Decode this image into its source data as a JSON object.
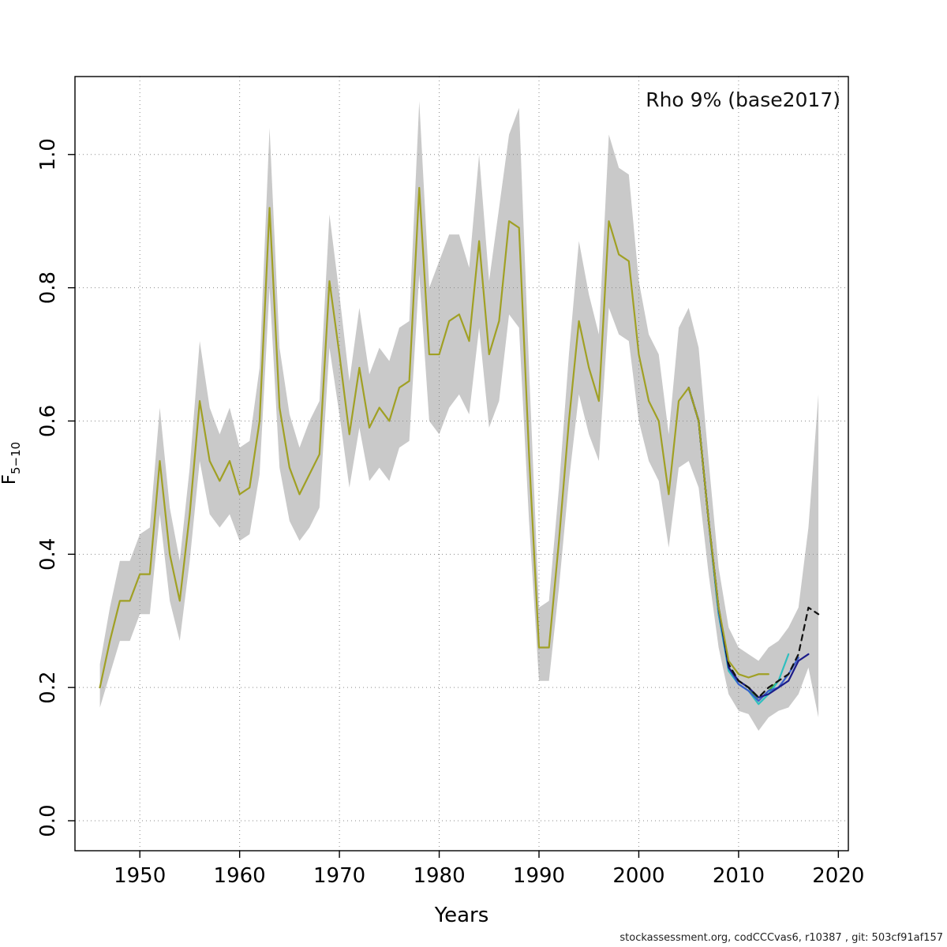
{
  "page": {
    "footer": "stockassessment.org, codCCCvas6, r10387 , git: 503cf91af157"
  },
  "chart_data": {
    "type": "line",
    "title": "Rho 9% (base2017)",
    "xlabel": "Years",
    "ylabel": "F5-10",
    "ylabel_base": "F",
    "ylabel_sub": "5−10",
    "xlim": [
      1943.5,
      2021
    ],
    "ylim": [
      -0.045,
      1.117
    ],
    "xticks": [
      1950,
      1960,
      1970,
      1980,
      1990,
      2000,
      2010,
      2020
    ],
    "xtick_labels": [
      "1950",
      "1960",
      "1970",
      "1980",
      "1990",
      "2000",
      "2010",
      "2020"
    ],
    "yticks": [
      0.0,
      0.2,
      0.4,
      0.6,
      0.8,
      1.0
    ],
    "ytick_labels": [
      "0.0",
      "0.2",
      "0.4",
      "0.6",
      "0.8",
      "1.0"
    ],
    "grid": "dotted",
    "legend": "none",
    "band": {
      "color": "#c9c9c9",
      "years": [
        1946,
        1947,
        1948,
        1949,
        1950,
        1951,
        1952,
        1953,
        1954,
        1955,
        1956,
        1957,
        1958,
        1959,
        1960,
        1961,
        1962,
        1963,
        1964,
        1965,
        1966,
        1967,
        1968,
        1969,
        1970,
        1971,
        1972,
        1973,
        1974,
        1975,
        1976,
        1977,
        1978,
        1979,
        1980,
        1981,
        1982,
        1983,
        1984,
        1985,
        1986,
        1987,
        1988,
        1989,
        1990,
        1991,
        1992,
        1993,
        1994,
        1995,
        1996,
        1997,
        1998,
        1999,
        2000,
        2001,
        2002,
        2003,
        2004,
        2005,
        2006,
        2007,
        2008,
        2009,
        2010,
        2011,
        2012,
        2013,
        2014,
        2015,
        2016,
        2017,
        2018
      ],
      "lo": [
        0.17,
        0.22,
        0.27,
        0.27,
        0.31,
        0.31,
        0.46,
        0.33,
        0.27,
        0.39,
        0.54,
        0.46,
        0.44,
        0.46,
        0.42,
        0.43,
        0.52,
        0.8,
        0.53,
        0.45,
        0.42,
        0.44,
        0.47,
        0.71,
        0.61,
        0.5,
        0.59,
        0.51,
        0.53,
        0.51,
        0.56,
        0.57,
        0.82,
        0.6,
        0.58,
        0.62,
        0.64,
        0.61,
        0.74,
        0.59,
        0.63,
        0.76,
        0.74,
        0.45,
        0.21,
        0.21,
        0.35,
        0.51,
        0.64,
        0.58,
        0.54,
        0.77,
        0.73,
        0.72,
        0.6,
        0.54,
        0.51,
        0.41,
        0.53,
        0.54,
        0.5,
        0.37,
        0.26,
        0.19,
        0.165,
        0.16,
        0.135,
        0.155,
        0.165,
        0.17,
        0.19,
        0.23,
        0.155
      ],
      "hi": [
        0.235,
        0.32,
        0.39,
        0.39,
        0.43,
        0.44,
        0.62,
        0.47,
        0.39,
        0.53,
        0.72,
        0.62,
        0.58,
        0.62,
        0.56,
        0.57,
        0.68,
        1.04,
        0.71,
        0.61,
        0.56,
        0.6,
        0.63,
        0.91,
        0.79,
        0.66,
        0.77,
        0.67,
        0.71,
        0.69,
        0.74,
        0.75,
        1.08,
        0.8,
        0.84,
        0.88,
        0.88,
        0.83,
        1.0,
        0.81,
        0.92,
        1.03,
        1.07,
        0.68,
        0.32,
        0.33,
        0.5,
        0.7,
        0.87,
        0.79,
        0.73,
        1.03,
        0.98,
        0.97,
        0.81,
        0.73,
        0.7,
        0.58,
        0.74,
        0.77,
        0.71,
        0.54,
        0.38,
        0.29,
        0.26,
        0.25,
        0.24,
        0.26,
        0.27,
        0.29,
        0.32,
        0.44,
        0.64
      ]
    },
    "series": [
      {
        "name": "retro-green",
        "color": "#44a333",
        "dash": "",
        "x": [
          2005,
          2006,
          2007,
          2008,
          2009,
          2010,
          2011,
          2012,
          2013,
          2014
        ],
        "y": [
          0.65,
          0.6,
          0.45,
          0.31,
          0.23,
          0.21,
          0.2,
          0.18,
          0.195,
          0.21
        ]
      },
      {
        "name": "retro-turquoise",
        "color": "#2fbfbf",
        "dash": "",
        "x": [
          2005,
          2006,
          2007,
          2008,
          2009,
          2010,
          2011,
          2012,
          2013,
          2014,
          2015
        ],
        "y": [
          0.65,
          0.6,
          0.45,
          0.31,
          0.225,
          0.205,
          0.195,
          0.175,
          0.19,
          0.21,
          0.25
        ]
      },
      {
        "name": "retro-blue",
        "color": "#3a5fcd",
        "dash": "",
        "x": [
          2005,
          2006,
          2007,
          2008,
          2009,
          2010,
          2011,
          2012,
          2013,
          2014,
          2015,
          2016
        ],
        "y": [
          0.65,
          0.6,
          0.45,
          0.315,
          0.23,
          0.205,
          0.195,
          0.18,
          0.195,
          0.2,
          0.22,
          0.245
        ]
      },
      {
        "name": "retro-navy",
        "color": "#1c1c8a",
        "dash": "",
        "x": [
          2005,
          2006,
          2007,
          2008,
          2009,
          2010,
          2011,
          2012,
          2013,
          2014,
          2015,
          2016,
          2017
        ],
        "y": [
          0.65,
          0.6,
          0.45,
          0.32,
          0.23,
          0.21,
          0.2,
          0.185,
          0.19,
          0.2,
          0.21,
          0.24,
          0.25
        ]
      },
      {
        "name": "final-black-dashed",
        "color": "#111111",
        "dash": "7,6",
        "x": [
          2005,
          2006,
          2007,
          2008,
          2009,
          2010,
          2011,
          2012,
          2013,
          2014,
          2015,
          2016,
          2017,
          2018
        ],
        "y": [
          0.65,
          0.6,
          0.45,
          0.32,
          0.235,
          0.21,
          0.2,
          0.185,
          0.2,
          0.21,
          0.22,
          0.25,
          0.32,
          0.31
        ]
      },
      {
        "name": "base-olive",
        "color": "#a0a024",
        "dash": "",
        "x": [
          1946,
          1947,
          1948,
          1949,
          1950,
          1951,
          1952,
          1953,
          1954,
          1955,
          1956,
          1957,
          1958,
          1959,
          1960,
          1961,
          1962,
          1963,
          1964,
          1965,
          1966,
          1967,
          1968,
          1969,
          1970,
          1971,
          1972,
          1973,
          1974,
          1975,
          1976,
          1977,
          1978,
          1979,
          1980,
          1981,
          1982,
          1983,
          1984,
          1985,
          1986,
          1987,
          1988,
          1989,
          1990,
          1991,
          1992,
          1993,
          1994,
          1995,
          1996,
          1997,
          1998,
          1999,
          2000,
          2001,
          2002,
          2003,
          2004,
          2005,
          2006,
          2007,
          2008,
          2009,
          2010,
          2011,
          2012,
          2013
        ],
        "y": [
          0.2,
          0.27,
          0.33,
          0.33,
          0.37,
          0.37,
          0.54,
          0.4,
          0.33,
          0.46,
          0.63,
          0.54,
          0.51,
          0.54,
          0.49,
          0.5,
          0.6,
          0.92,
          0.62,
          0.53,
          0.49,
          0.52,
          0.55,
          0.81,
          0.7,
          0.58,
          0.68,
          0.59,
          0.62,
          0.6,
          0.65,
          0.66,
          0.95,
          0.7,
          0.7,
          0.75,
          0.76,
          0.72,
          0.87,
          0.7,
          0.75,
          0.9,
          0.89,
          0.55,
          0.26,
          0.26,
          0.42,
          0.6,
          0.75,
          0.68,
          0.63,
          0.9,
          0.85,
          0.84,
          0.7,
          0.63,
          0.6,
          0.49,
          0.63,
          0.65,
          0.6,
          0.45,
          0.32,
          0.24,
          0.22,
          0.215,
          0.22,
          0.22
        ]
      }
    ]
  }
}
